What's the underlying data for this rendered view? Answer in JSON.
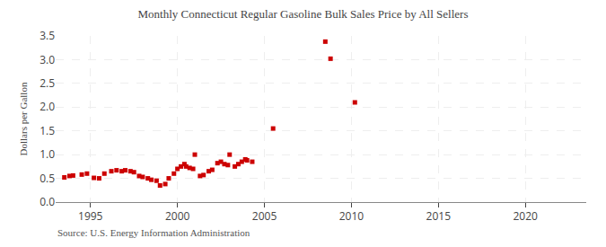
{
  "chart_data": {
    "type": "scatter",
    "title": "Monthly Connecticut Regular Gasoline Bulk Sales Price by All Sellers",
    "ylabel": "Dollars per Gallon",
    "annotations": [
      "Source: U.S. Energy Information Administration"
    ],
    "x": [
      1993.5,
      1993.8,
      1994.0,
      1994.5,
      1994.8,
      1995.2,
      1995.5,
      1995.8,
      1996.2,
      1996.5,
      1996.8,
      1997.0,
      1997.3,
      1997.5,
      1997.8,
      1998.0,
      1998.3,
      1998.5,
      1998.8,
      1999.0,
      1999.3,
      1999.5,
      1999.8,
      2000.0,
      2000.2,
      2000.4,
      2000.5,
      2000.7,
      2000.9,
      2001.0,
      2001.3,
      2001.5,
      2001.8,
      2002.0,
      2002.3,
      2002.5,
      2002.7,
      2002.9,
      2003.0,
      2003.3,
      2003.5,
      2003.7,
      2003.9,
      2004.0,
      2004.3,
      2005.5,
      2008.5,
      2008.8,
      2010.2
    ],
    "values": [
      0.52,
      0.55,
      0.56,
      0.58,
      0.6,
      0.51,
      0.5,
      0.6,
      0.65,
      0.67,
      0.65,
      0.67,
      0.65,
      0.63,
      0.55,
      0.53,
      0.5,
      0.47,
      0.45,
      0.35,
      0.38,
      0.5,
      0.6,
      0.7,
      0.75,
      0.8,
      0.75,
      0.72,
      0.7,
      1.0,
      0.55,
      0.57,
      0.65,
      0.68,
      0.82,
      0.85,
      0.8,
      0.78,
      1.0,
      0.75,
      0.8,
      0.85,
      0.9,
      0.88,
      0.85,
      1.55,
      3.38,
      3.02,
      2.1
    ],
    "color": "#cc0000",
    "marker": "square",
    "xlim": [
      1993.0,
      2023.5
    ],
    "ylim": [
      0.0,
      3.5
    ],
    "xticks": [
      1995,
      2000,
      2005,
      2010,
      2015,
      2020
    ],
    "yticks": [
      {
        "value": 0,
        "label": "0.0"
      },
      0.5,
      {
        "value": 1,
        "label": "1.0"
      },
      1.5,
      {
        "value": 2,
        "label": "2.0"
      },
      2.5,
      {
        "value": 3,
        "label": "3.0"
      },
      3.5
    ],
    "grid": true
  }
}
